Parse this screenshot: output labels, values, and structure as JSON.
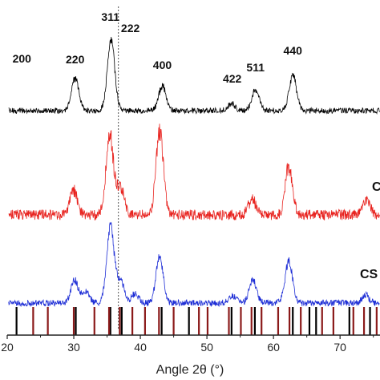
{
  "chart_data": {
    "type": "line",
    "xlabel": "Angle 2θ (°)",
    "xlim": [
      20,
      76
    ],
    "x_ticks": [
      "20",
      "30",
      "40",
      "50",
      "60",
      "70"
    ],
    "x_tick_values": [
      20,
      30,
      40,
      50,
      60,
      70
    ],
    "reference_line_x": 36.7,
    "peak_labels": [
      {
        "text": "200",
        "x": 22.2
      },
      {
        "text": "220",
        "x": 30.2
      },
      {
        "text": "311",
        "x": 35.5
      },
      {
        "text": "222",
        "x": 38.5
      },
      {
        "text": "400",
        "x": 43.3
      },
      {
        "text": "422",
        "x": 53.8
      },
      {
        "text": "511",
        "x": 57.3
      },
      {
        "text": "440",
        "x": 62.9
      }
    ],
    "series": [
      {
        "name": "",
        "label_visible": "",
        "color": "#000000",
        "peaks": [
          {
            "x": 30.2,
            "h": 0.45
          },
          {
            "x": 35.6,
            "h": 1.0
          },
          {
            "x": 43.3,
            "h": 0.35
          },
          {
            "x": 53.7,
            "h": 0.1
          },
          {
            "x": 57.3,
            "h": 0.3
          },
          {
            "x": 62.9,
            "h": 0.5
          }
        ],
        "baseline_intensity": 0
      },
      {
        "name": "C",
        "label_visible": "C",
        "color": "#e8231f",
        "peaks": [
          {
            "x": 30.0,
            "h": 0.3
          },
          {
            "x": 35.4,
            "h": 1.0
          },
          {
            "x": 37.0,
            "h": 0.35
          },
          {
            "x": 42.9,
            "h": 1.05
          },
          {
            "x": 56.8,
            "h": 0.2
          },
          {
            "x": 62.3,
            "h": 0.6
          },
          {
            "x": 74.0,
            "h": 0.18
          }
        ],
        "baseline_intensity": 0
      },
      {
        "name": "CS",
        "label_visible": "CS",
        "color": "#1f2fd6",
        "peaks": [
          {
            "x": 30.1,
            "h": 0.3
          },
          {
            "x": 31.8,
            "h": 0.15
          },
          {
            "x": 35.5,
            "h": 1.0
          },
          {
            "x": 37.0,
            "h": 0.3
          },
          {
            "x": 39.2,
            "h": 0.12
          },
          {
            "x": 42.9,
            "h": 0.6
          },
          {
            "x": 53.9,
            "h": 0.1
          },
          {
            "x": 56.9,
            "h": 0.3
          },
          {
            "x": 62.3,
            "h": 0.55
          },
          {
            "x": 73.8,
            "h": 0.1
          }
        ],
        "baseline_intensity": 0
      }
    ],
    "reference_bars": [
      {
        "color": "#000000",
        "x": [
          21.4,
          30.3,
          35.5,
          37.2,
          43.2,
          47.3,
          53.7,
          57.2,
          62.9,
          65.4,
          66.4,
          71.4,
          74.5
        ]
      },
      {
        "color": "#8b1a1a",
        "x": [
          23.9,
          26.1,
          30.0,
          33.1,
          35.3,
          36.9,
          38.8,
          40.7,
          42.8,
          45.0,
          48.8,
          50.1,
          53.3,
          55.1,
          56.7,
          58.2,
          60.7,
          62.4,
          64.1,
          67.3,
          69.0,
          72.0,
          73.6,
          75.5
        ]
      }
    ],
    "grid": false,
    "legend": "none"
  }
}
